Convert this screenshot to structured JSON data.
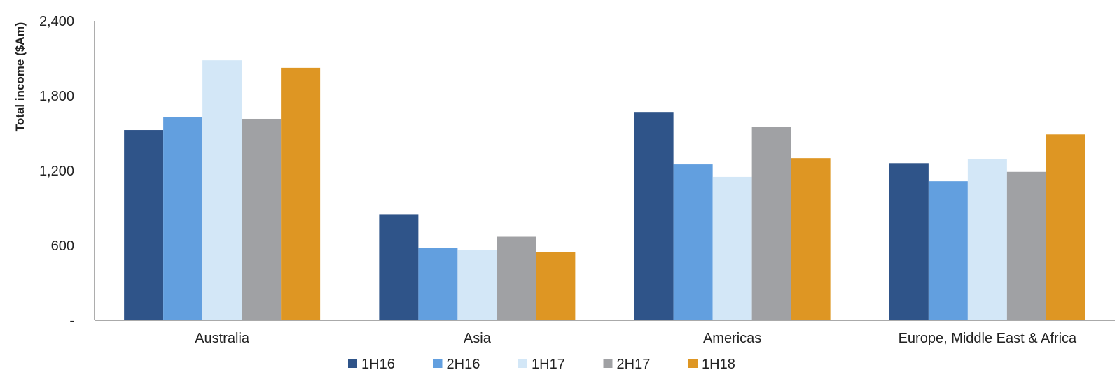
{
  "chart_data": {
    "type": "bar",
    "ylabel": "Total income ($Am)",
    "xlabel": "",
    "categories": [
      "Australia",
      "Asia",
      "Americas",
      "Europe, Middle East & Africa"
    ],
    "ylim": [
      0,
      2400
    ],
    "yticks": [
      0,
      600,
      1200,
      1800,
      2400
    ],
    "ytick_labels": [
      "-",
      "600",
      "1,200",
      "1,800",
      "2,400"
    ],
    "series": [
      {
        "name": "1H16",
        "color": "#2f5489",
        "values": [
          1525,
          850,
          1670,
          1260
        ]
      },
      {
        "name": "2H16",
        "color": "#629fdf",
        "values": [
          1630,
          580,
          1250,
          1115
        ]
      },
      {
        "name": "1H17",
        "color": "#d3e7f7",
        "values": [
          2085,
          565,
          1150,
          1290
        ]
      },
      {
        "name": "2H17",
        "color": "#a0a1a4",
        "values": [
          1615,
          670,
          1550,
          1190
        ]
      },
      {
        "name": "1H18",
        "color": "#de9623",
        "values": [
          2025,
          545,
          1300,
          1490
        ]
      }
    ],
    "grid": false,
    "legend_position": "bottom"
  }
}
